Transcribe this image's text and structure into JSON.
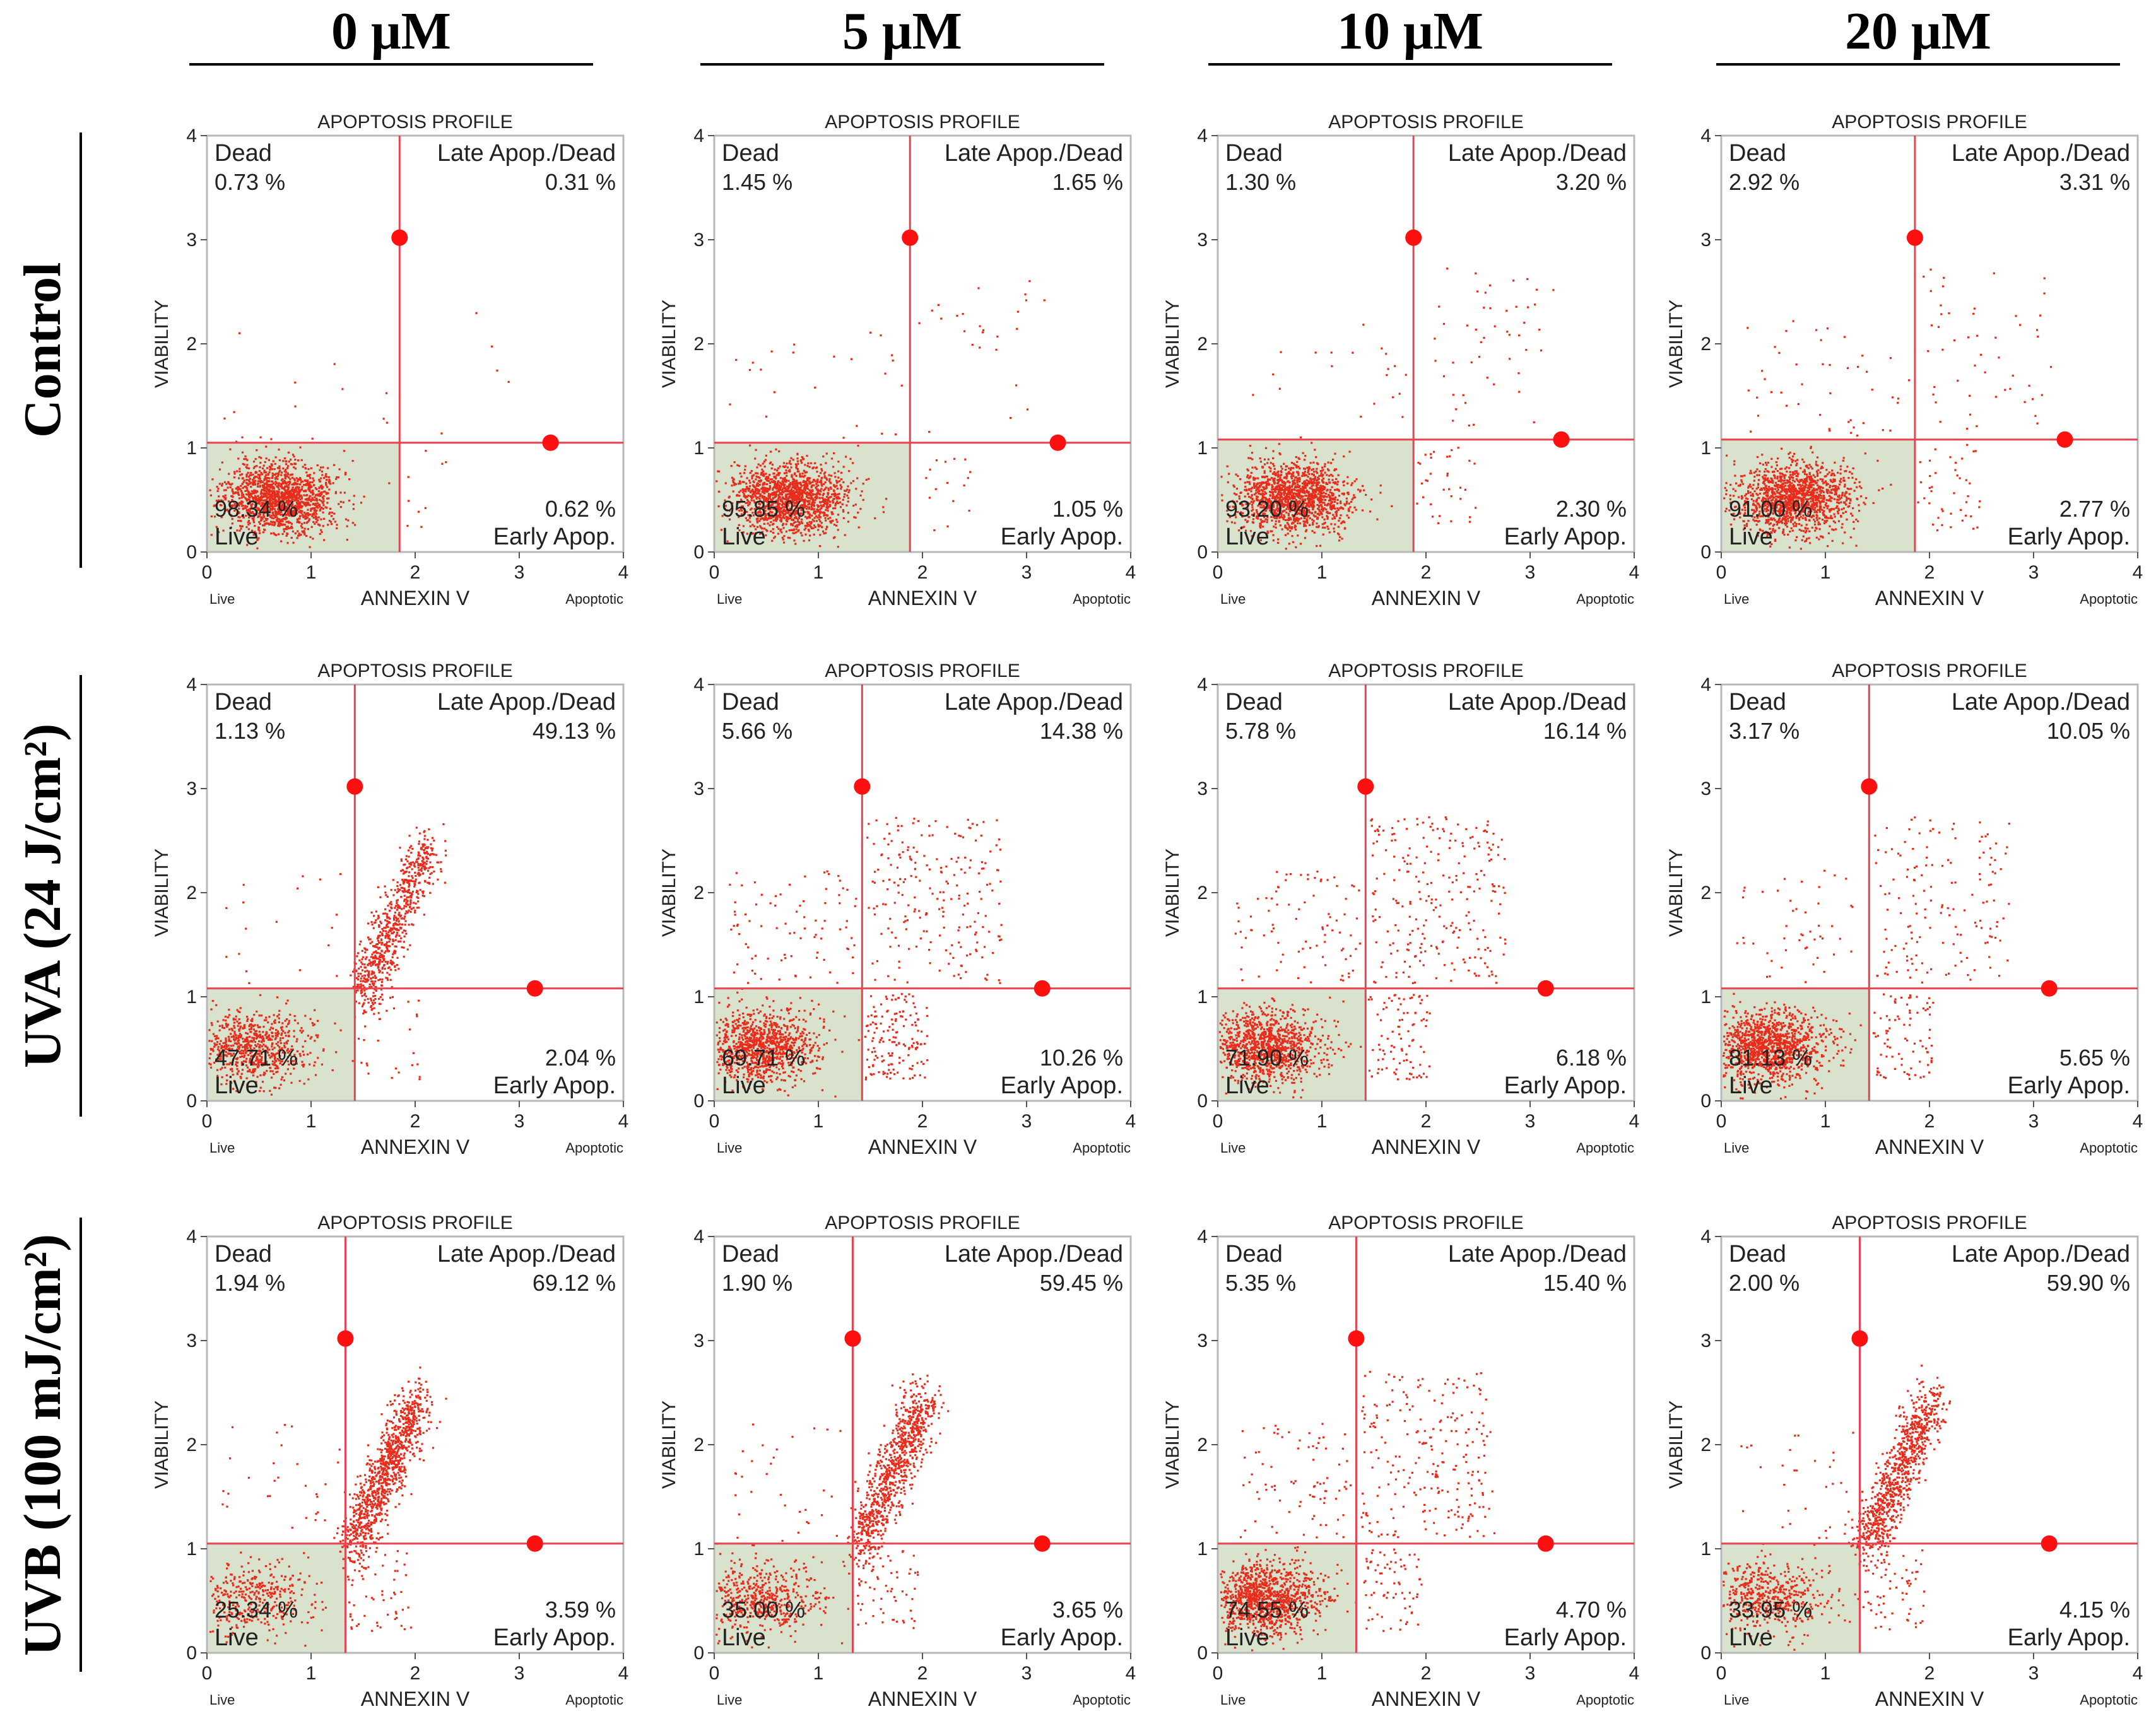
{
  "column_headers": [
    "0 μM",
    "5 μM",
    "10 μM",
    "20 μM"
  ],
  "row_headers": [
    "Control",
    "UVA (24 J/cm²)",
    "UVB (100 mJ/cm²)"
  ],
  "colors": {
    "points": "#e82c1c",
    "gate_line": "#e8434f",
    "gate_marker": "#ff1010",
    "live_fill": "#d9e2cd",
    "frame": "#b8b8b8"
  },
  "chart_data": [
    {
      "type": "scatter",
      "row": "Control",
      "column": "0 μM",
      "title": "APOPTOSIS PROFILE",
      "xlabel": "ANNEXIN V",
      "ylabel": "VIABILITY",
      "x_left_label": "Live",
      "x_right_label": "Apoptotic",
      "xlim": [
        0,
        4
      ],
      "ylim": [
        0,
        4
      ],
      "xticks": [
        0,
        1,
        2,
        3,
        4
      ],
      "yticks": [
        0,
        1,
        2,
        3,
        4
      ],
      "gate_x": 1.85,
      "gate_y": 1.05,
      "marker_top": [
        1.85,
        3.02
      ],
      "marker_right": [
        3.3,
        1.05
      ],
      "quadrants": {
        "dead": {
          "label": "Dead",
          "value": "0.73 %"
        },
        "late": {
          "label": "Late Apop./Dead",
          "value": "0.31 %"
        },
        "live": {
          "label": "Live",
          "value": "98.34 %"
        },
        "early": {
          "label": "Early Apop.",
          "value": "0.62 %"
        }
      }
    },
    {
      "type": "scatter",
      "row": "Control",
      "column": "5 μM",
      "title": "APOPTOSIS PROFILE",
      "xlabel": "ANNEXIN V",
      "ylabel": "VIABILITY",
      "x_left_label": "Live",
      "x_right_label": "Apoptotic",
      "xlim": [
        0,
        4
      ],
      "ylim": [
        0,
        4
      ],
      "xticks": [
        0,
        1,
        2,
        3,
        4
      ],
      "yticks": [
        0,
        1,
        2,
        3,
        4
      ],
      "gate_x": 1.88,
      "gate_y": 1.05,
      "marker_top": [
        1.88,
        3.02
      ],
      "marker_right": [
        3.3,
        1.05
      ],
      "quadrants": {
        "dead": {
          "label": "Dead",
          "value": "1.45 %"
        },
        "late": {
          "label": "Late Apop./Dead",
          "value": "1.65 %"
        },
        "live": {
          "label": "Live",
          "value": "95.85 %"
        },
        "early": {
          "label": "Early Apop.",
          "value": "1.05 %"
        }
      }
    },
    {
      "type": "scatter",
      "row": "Control",
      "column": "10 μM",
      "title": "APOPTOSIS PROFILE",
      "xlabel": "ANNEXIN V",
      "ylabel": "VIABILITY",
      "x_left_label": "Live",
      "x_right_label": "Apoptotic",
      "xlim": [
        0,
        4
      ],
      "ylim": [
        0,
        4
      ],
      "xticks": [
        0,
        1,
        2,
        3,
        4
      ],
      "yticks": [
        0,
        1,
        2,
        3,
        4
      ],
      "gate_x": 1.88,
      "gate_y": 1.08,
      "marker_top": [
        1.88,
        3.02
      ],
      "marker_right": [
        3.3,
        1.08
      ],
      "quadrants": {
        "dead": {
          "label": "Dead",
          "value": "1.30 %"
        },
        "late": {
          "label": "Late Apop./Dead",
          "value": "3.20 %"
        },
        "live": {
          "label": "Live",
          "value": "93.20 %"
        },
        "early": {
          "label": "Early Apop.",
          "value": "2.30 %"
        }
      }
    },
    {
      "type": "scatter",
      "row": "Control",
      "column": "20 μM",
      "title": "APOPTOSIS PROFILE",
      "xlabel": "ANNEXIN V",
      "ylabel": "VIABILITY",
      "x_left_label": "Live",
      "x_right_label": "Apoptotic",
      "xlim": [
        0,
        4
      ],
      "ylim": [
        0,
        4
      ],
      "xticks": [
        0,
        1,
        2,
        3,
        4
      ],
      "yticks": [
        0,
        1,
        2,
        3,
        4
      ],
      "gate_x": 1.86,
      "gate_y": 1.08,
      "marker_top": [
        1.86,
        3.02
      ],
      "marker_right": [
        3.3,
        1.08
      ],
      "quadrants": {
        "dead": {
          "label": "Dead",
          "value": "2.92 %"
        },
        "late": {
          "label": "Late Apop./Dead",
          "value": "3.31 %"
        },
        "live": {
          "label": "Live",
          "value": "91.00 %"
        },
        "early": {
          "label": "Early Apop.",
          "value": "2.77 %"
        }
      }
    },
    {
      "type": "scatter",
      "row": "UVA (24 J/cm²)",
      "column": "0 μM",
      "title": "APOPTOSIS PROFILE",
      "xlabel": "ANNEXIN V",
      "ylabel": "VIABILITY",
      "x_left_label": "Live",
      "x_right_label": "Apoptotic",
      "xlim": [
        0,
        4
      ],
      "ylim": [
        0,
        4
      ],
      "xticks": [
        0,
        1,
        2,
        3,
        4
      ],
      "yticks": [
        0,
        1,
        2,
        3,
        4
      ],
      "gate_x": 1.42,
      "gate_y": 1.08,
      "marker_top": [
        1.42,
        3.02
      ],
      "marker_right": [
        3.15,
        1.08
      ],
      "quadrants": {
        "dead": {
          "label": "Dead",
          "value": "1.13 %"
        },
        "late": {
          "label": "Late Apop./Dead",
          "value": "49.13 %"
        },
        "live": {
          "label": "Live",
          "value": "47.71 %"
        },
        "early": {
          "label": "Early Apop.",
          "value": "2.04 %"
        }
      }
    },
    {
      "type": "scatter",
      "row": "UVA (24 J/cm²)",
      "column": "5 μM",
      "title": "APOPTOSIS PROFILE",
      "xlabel": "ANNEXIN V",
      "ylabel": "VIABILITY",
      "x_left_label": "Live",
      "x_right_label": "Apoptotic",
      "xlim": [
        0,
        4
      ],
      "ylim": [
        0,
        4
      ],
      "xticks": [
        0,
        1,
        2,
        3,
        4
      ],
      "yticks": [
        0,
        1,
        2,
        3,
        4
      ],
      "gate_x": 1.42,
      "gate_y": 1.08,
      "marker_top": [
        1.42,
        3.02
      ],
      "marker_right": [
        3.15,
        1.08
      ],
      "quadrants": {
        "dead": {
          "label": "Dead",
          "value": "5.66 %"
        },
        "late": {
          "label": "Late Apop./Dead",
          "value": "14.38 %"
        },
        "live": {
          "label": "Live",
          "value": "69.71 %"
        },
        "early": {
          "label": "Early Apop.",
          "value": "10.26 %"
        }
      }
    },
    {
      "type": "scatter",
      "row": "UVA (24 J/cm²)",
      "column": "10 μM",
      "title": "APOPTOSIS PROFILE",
      "xlabel": "ANNEXIN V",
      "ylabel": "VIABILITY",
      "x_left_label": "Live",
      "x_right_label": "Apoptotic",
      "xlim": [
        0,
        4
      ],
      "ylim": [
        0,
        4
      ],
      "xticks": [
        0,
        1,
        2,
        3,
        4
      ],
      "yticks": [
        0,
        1,
        2,
        3,
        4
      ],
      "gate_x": 1.42,
      "gate_y": 1.08,
      "marker_top": [
        1.42,
        3.02
      ],
      "marker_right": [
        3.15,
        1.08
      ],
      "quadrants": {
        "dead": {
          "label": "Dead",
          "value": "5.78 %"
        },
        "late": {
          "label": "Late Apop./Dead",
          "value": "16.14 %"
        },
        "live": {
          "label": "Live",
          "value": "71.90 %"
        },
        "early": {
          "label": "Early Apop.",
          "value": "6.18 %"
        }
      }
    },
    {
      "type": "scatter",
      "row": "UVA (24 J/cm²)",
      "column": "20 μM",
      "title": "APOPTOSIS PROFILE",
      "xlabel": "ANNEXIN V",
      "ylabel": "VIABILITY",
      "x_left_label": "Live",
      "x_right_label": "Apoptotic",
      "xlim": [
        0,
        4
      ],
      "ylim": [
        0,
        4
      ],
      "xticks": [
        0,
        1,
        2,
        3,
        4
      ],
      "yticks": [
        0,
        1,
        2,
        3,
        4
      ],
      "gate_x": 1.42,
      "gate_y": 1.08,
      "marker_top": [
        1.42,
        3.02
      ],
      "marker_right": [
        3.15,
        1.08
      ],
      "quadrants": {
        "dead": {
          "label": "Dead",
          "value": "3.17 %"
        },
        "late": {
          "label": "Late Apop./Dead",
          "value": "10.05 %"
        },
        "live": {
          "label": "Live",
          "value": "81.13 %"
        },
        "early": {
          "label": "Early Apop.",
          "value": "5.65 %"
        }
      }
    },
    {
      "type": "scatter",
      "row": "UVB (100 mJ/cm²)",
      "column": "0 μM",
      "title": "APOPTOSIS PROFILE",
      "xlabel": "ANNEXIN V",
      "ylabel": "VIABILITY",
      "x_left_label": "Live",
      "x_right_label": "Apoptotic",
      "xlim": [
        0,
        4
      ],
      "ylim": [
        0,
        4
      ],
      "xticks": [
        0,
        1,
        2,
        3,
        4
      ],
      "yticks": [
        0,
        1,
        2,
        3,
        4
      ],
      "gate_x": 1.33,
      "gate_y": 1.05,
      "marker_top": [
        1.33,
        3.02
      ],
      "marker_right": [
        3.15,
        1.05
      ],
      "quadrants": {
        "dead": {
          "label": "Dead",
          "value": "1.94 %"
        },
        "late": {
          "label": "Late Apop./Dead",
          "value": "69.12 %"
        },
        "live": {
          "label": "Live",
          "value": "25.34 %"
        },
        "early": {
          "label": "Early Apop.",
          "value": "3.59 %"
        }
      }
    },
    {
      "type": "scatter",
      "row": "UVB (100 mJ/cm²)",
      "column": "5 μM",
      "title": "APOPTOSIS PROFILE",
      "xlabel": "ANNEXIN V",
      "ylabel": "VIABILITY",
      "x_left_label": "Live",
      "x_right_label": "Apoptotic",
      "xlim": [
        0,
        4
      ],
      "ylim": [
        0,
        4
      ],
      "xticks": [
        0,
        1,
        2,
        3,
        4
      ],
      "yticks": [
        0,
        1,
        2,
        3,
        4
      ],
      "gate_x": 1.33,
      "gate_y": 1.05,
      "marker_top": [
        1.33,
        3.02
      ],
      "marker_right": [
        3.15,
        1.05
      ],
      "quadrants": {
        "dead": {
          "label": "Dead",
          "value": "1.90 %"
        },
        "late": {
          "label": "Late Apop./Dead",
          "value": "59.45 %"
        },
        "live": {
          "label": "Live",
          "value": "35.00 %"
        },
        "early": {
          "label": "Early Apop.",
          "value": "3.65 %"
        }
      }
    },
    {
      "type": "scatter",
      "row": "UVB (100 mJ/cm²)",
      "column": "10 μM",
      "title": "APOPTOSIS PROFILE",
      "xlabel": "ANNEXIN V",
      "ylabel": "VIABILITY",
      "x_left_label": "Live",
      "x_right_label": "Apoptotic",
      "xlim": [
        0,
        4
      ],
      "ylim": [
        0,
        4
      ],
      "xticks": [
        0,
        1,
        2,
        3,
        4
      ],
      "yticks": [
        0,
        1,
        2,
        3,
        4
      ],
      "gate_x": 1.33,
      "gate_y": 1.05,
      "marker_top": [
        1.33,
        3.02
      ],
      "marker_right": [
        3.15,
        1.05
      ],
      "quadrants": {
        "dead": {
          "label": "Dead",
          "value": "5.35 %"
        },
        "late": {
          "label": "Late Apop./Dead",
          "value": "15.40 %"
        },
        "live": {
          "label": "Live",
          "value": "74.55 %"
        },
        "early": {
          "label": "Early Apop.",
          "value": "4.70 %"
        }
      }
    },
    {
      "type": "scatter",
      "row": "UVB (100 mJ/cm²)",
      "column": "20 μM",
      "title": "APOPTOSIS PROFILE",
      "xlabel": "ANNEXIN V",
      "ylabel": "VIABILITY",
      "x_left_label": "Live",
      "x_right_label": "Apoptotic",
      "xlim": [
        0,
        4
      ],
      "ylim": [
        0,
        4
      ],
      "xticks": [
        0,
        1,
        2,
        3,
        4
      ],
      "yticks": [
        0,
        1,
        2,
        3,
        4
      ],
      "gate_x": 1.33,
      "gate_y": 1.05,
      "marker_top": [
        1.33,
        3.02
      ],
      "marker_right": [
        3.15,
        1.05
      ],
      "quadrants": {
        "dead": {
          "label": "Dead",
          "value": "2.00 %"
        },
        "late": {
          "label": "Late Apop./Dead",
          "value": "59.90 %"
        },
        "live": {
          "label": "Live",
          "value": "33.95 %"
        },
        "early": {
          "label": "Early Apop.",
          "value": "4.15 %"
        }
      }
    }
  ]
}
